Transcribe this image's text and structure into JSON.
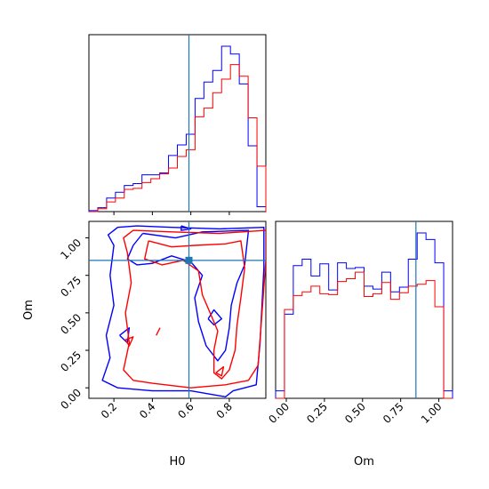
{
  "chart_data": {
    "type": "corner",
    "parameters": [
      "H0",
      "Om"
    ],
    "colors": {
      "red": "#ff0000",
      "blue": "#0000ff",
      "truth": "#1f77b4"
    },
    "truth": {
      "H0": 0.59,
      "Om": 0.85
    },
    "panels": [
      {
        "id": "hist-H0",
        "type": "histogram",
        "xlim": [
          0.07,
          0.99
        ],
        "x_ticks": [
          0.2,
          0.4,
          0.6,
          0.8
        ],
        "x_tick_labels": [],
        "y_ticks_labels": [],
        "bin_edges": [
          0.07,
          0.116,
          0.162,
          0.208,
          0.254,
          0.3,
          0.346,
          0.392,
          0.438,
          0.484,
          0.53,
          0.576,
          0.622,
          0.668,
          0.714,
          0.76,
          0.806,
          0.852,
          0.898,
          0.944,
          0.99
        ],
        "series": [
          {
            "name": "",
            "color": "#0000ff",
            "counts": [
              1,
              4,
              14,
              20,
              27,
              29,
              38,
              38,
              40,
              58,
              69,
              80,
              117,
              134,
              146,
              171,
              163,
              132,
              68,
              5
            ]
          },
          {
            "name": "",
            "color": "#ff0000",
            "counts": [
              0,
              3,
              10,
              14,
              23,
              24,
              30,
              34,
              39,
              45,
              57,
              64,
              98,
              107,
              123,
              137,
              152,
              140,
              97,
              47
            ]
          }
        ]
      },
      {
        "id": "hist-Om",
        "type": "histogram",
        "xlim": [
          -0.07,
          1.09
        ],
        "x_ticks": [
          0.0,
          0.25,
          0.5,
          0.75,
          1.0
        ],
        "x_tick_labels": [
          "0.00",
          "0.25",
          "0.50",
          "0.75",
          "1.00"
        ],
        "x_label": "Om",
        "bin_edges": [
          -0.07,
          -0.012,
          0.046,
          0.104,
          0.162,
          0.22,
          0.278,
          0.336,
          0.394,
          0.452,
          0.51,
          0.568,
          0.626,
          0.684,
          0.742,
          0.8,
          0.858,
          0.916,
          0.974,
          1.032,
          1.09
        ],
        "series": [
          {
            "name": "",
            "color": "#0000ff",
            "counts": [
              8,
              90,
              142,
              149,
              131,
              144,
              116,
              145,
              139,
              140,
              120,
              117,
              135,
              114,
              119,
              149,
              177,
              170,
              145,
              8
            ]
          },
          {
            "name": "",
            "color": "#ff0000",
            "counts": [
              0,
              95,
              110,
              114,
              120,
              112,
              111,
              125,
              128,
              135,
              109,
              112,
              124,
              106,
              113,
              120,
              122,
              126,
              98,
              0
            ]
          }
        ]
      },
      {
        "id": "contour-H0-Om",
        "type": "contour",
        "xlim": [
          0.07,
          0.99
        ],
        "ylim": [
          -0.07,
          1.11
        ],
        "x_ticks": [
          0.2,
          0.4,
          0.6,
          0.8
        ],
        "x_tick_labels": [
          "0.2",
          "0.4",
          "0.6",
          "0.8"
        ],
        "y_ticks": [
          0.0,
          0.25,
          0.5,
          0.75,
          1.0
        ],
        "y_tick_labels": [
          "0.00",
          "0.25",
          "0.50",
          "0.75",
          "1.00"
        ],
        "x_label": "H0",
        "y_label": "Om",
        "contours": [
          {
            "color": "#0000ff",
            "points": [
              [
                0.32,
                1.08
              ],
              [
                0.5,
                1.07
              ],
              [
                0.75,
                1.06
              ],
              [
                0.98,
                1.07
              ],
              [
                0.98,
                0.8
              ],
              [
                0.96,
                0.3
              ],
              [
                0.94,
                0.02
              ],
              [
                0.82,
                -0.02
              ],
              [
                0.78,
                -0.06
              ],
              [
                0.6,
                -0.02
              ],
              [
                0.4,
                -0.02
              ],
              [
                0.22,
                0.0
              ],
              [
                0.14,
                0.05
              ],
              [
                0.18,
                0.2
              ],
              [
                0.16,
                0.35
              ],
              [
                0.2,
                0.55
              ],
              [
                0.18,
                0.75
              ],
              [
                0.2,
                0.95
              ],
              [
                0.17,
                1.02
              ],
              [
                0.22,
                1.07
              ],
              [
                0.32,
                1.08
              ]
            ]
          },
          {
            "color": "#0000ff",
            "points": [
              [
                0.35,
                1.03
              ],
              [
                0.52,
                1.0
              ],
              [
                0.66,
                1.04
              ],
              [
                0.9,
                1.05
              ],
              [
                0.88,
                0.82
              ],
              [
                0.84,
                0.7
              ],
              [
                0.81,
                0.55
              ],
              [
                0.8,
                0.4
              ],
              [
                0.78,
                0.25
              ],
              [
                0.74,
                0.18
              ],
              [
                0.68,
                0.28
              ],
              [
                0.64,
                0.44
              ],
              [
                0.62,
                0.6
              ],
              [
                0.66,
                0.75
              ],
              [
                0.6,
                0.84
              ],
              [
                0.5,
                0.88
              ],
              [
                0.4,
                0.83
              ],
              [
                0.32,
                0.82
              ],
              [
                0.27,
                0.86
              ],
              [
                0.3,
                0.95
              ],
              [
                0.35,
                1.03
              ]
            ]
          },
          {
            "color": "#0000ff",
            "points": [
              [
                0.23,
                0.35
              ],
              [
                0.28,
                0.4
              ],
              [
                0.27,
                0.3
              ],
              [
                0.23,
                0.35
              ]
            ]
          },
          {
            "color": "#0000ff",
            "points": [
              [
                0.69,
                0.46
              ],
              [
                0.72,
                0.52
              ],
              [
                0.76,
                0.46
              ],
              [
                0.72,
                0.42
              ],
              [
                0.69,
                0.46
              ]
            ]
          },
          {
            "color": "#0000ff",
            "points": [
              [
                0.55,
                1.08
              ],
              [
                0.6,
                1.06
              ],
              [
                0.55,
                1.05
              ],
              [
                0.55,
                1.08
              ]
            ]
          },
          {
            "color": "#ff0000",
            "points": [
              [
                0.3,
                1.05
              ],
              [
                0.5,
                1.04
              ],
              [
                0.75,
                1.03
              ],
              [
                0.99,
                1.05
              ],
              [
                0.99,
                0.85
              ],
              [
                0.97,
                0.5
              ],
              [
                0.95,
                0.15
              ],
              [
                0.9,
                0.05
              ],
              [
                0.78,
                0.02
              ],
              [
                0.6,
                0.0
              ],
              [
                0.4,
                0.03
              ],
              [
                0.3,
                0.05
              ],
              [
                0.25,
                0.12
              ],
              [
                0.28,
                0.3
              ],
              [
                0.26,
                0.5
              ],
              [
                0.29,
                0.7
              ],
              [
                0.27,
                0.9
              ],
              [
                0.25,
                1.0
              ],
              [
                0.3,
                1.05
              ]
            ]
          },
          {
            "color": "#ff0000",
            "points": [
              [
                0.38,
                0.98
              ],
              [
                0.5,
                0.94
              ],
              [
                0.62,
                0.95
              ],
              [
                0.78,
                0.96
              ],
              [
                0.86,
                0.98
              ],
              [
                0.88,
                0.8
              ],
              [
                0.86,
                0.6
              ],
              [
                0.84,
                0.42
              ],
              [
                0.83,
                0.25
              ],
              [
                0.8,
                0.12
              ],
              [
                0.76,
                0.06
              ],
              [
                0.72,
                0.1
              ],
              [
                0.72,
                0.25
              ],
              [
                0.74,
                0.38
              ],
              [
                0.7,
                0.5
              ],
              [
                0.66,
                0.62
              ],
              [
                0.64,
                0.78
              ],
              [
                0.56,
                0.85
              ],
              [
                0.45,
                0.82
              ],
              [
                0.36,
                0.86
              ],
              [
                0.38,
                0.98
              ]
            ]
          },
          {
            "color": "#ff0000",
            "points": [
              [
                0.73,
                0.1
              ],
              [
                0.77,
                0.14
              ],
              [
                0.76,
                0.08
              ],
              [
                0.73,
                0.1
              ]
            ]
          },
          {
            "color": "#ff0000",
            "points": [
              [
                0.42,
                0.35
              ],
              [
                0.44,
                0.4
              ]
            ]
          },
          {
            "color": "#ff0000",
            "points": [
              [
                0.26,
                0.32
              ],
              [
                0.3,
                0.34
              ],
              [
                0.28,
                0.28
              ],
              [
                0.26,
                0.32
              ]
            ]
          }
        ]
      }
    ]
  }
}
